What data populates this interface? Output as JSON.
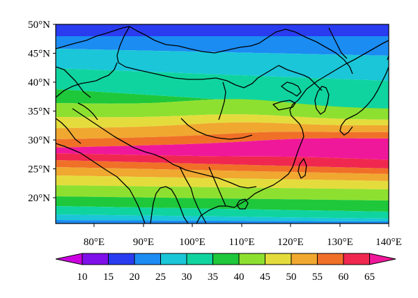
{
  "map": {
    "lat_labels": [
      "50°N",
      "45°N",
      "40°N",
      "35°N",
      "30°N",
      "25°N",
      "20°N"
    ],
    "lon_labels": [
      "80°E",
      "90°E",
      "100°E",
      "110°E",
      "120°E",
      "130°E",
      "140°E"
    ],
    "extent": {
      "lon_min": 72.5,
      "lon_max": 140,
      "lat_min": 15.5,
      "lat_max": 50
    }
  },
  "colorbar": {
    "ticks": [
      "10",
      "15",
      "20",
      "25",
      "30",
      "35",
      "40",
      "45",
      "50",
      "55",
      "60",
      "65"
    ],
    "colors": [
      "#cc00e0",
      "#7f10ea",
      "#2a3cf0",
      "#1b8cf2",
      "#1ac6d8",
      "#10d4a0",
      "#1ec83a",
      "#8ee030",
      "#e4dc3c",
      "#f0a830",
      "#f07028",
      "#f02850",
      "#f0189a"
    ]
  }
}
